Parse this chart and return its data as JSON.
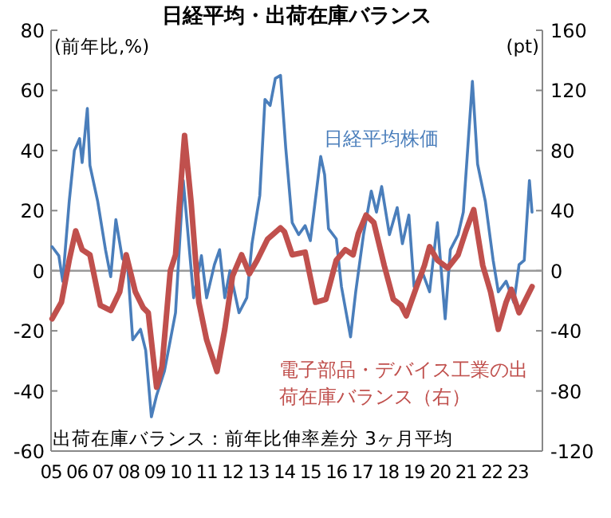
{
  "chart_data": {
    "type": "line",
    "title": "日経平均・出荷在庫バランス",
    "ylabel": "(前年比,%)",
    "y2label": "(pt)",
    "annotations": [
      "出荷在庫バランス：前年比伸率差分 3ヶ月平均"
    ],
    "xlim": [
      2005,
      2023.95
    ],
    "xticks": [
      {
        "value": 2005,
        "label": "05"
      },
      {
        "value": 2006,
        "label": "06"
      },
      {
        "value": 2007,
        "label": "07"
      },
      {
        "value": 2008,
        "label": "08"
      },
      {
        "value": 2009,
        "label": "09"
      },
      {
        "value": 2010,
        "label": "10"
      },
      {
        "value": 2011,
        "label": "11"
      },
      {
        "value": 2012,
        "label": "12"
      },
      {
        "value": 2013,
        "label": "13"
      },
      {
        "value": 2014,
        "label": "14"
      },
      {
        "value": 2015,
        "label": "15"
      },
      {
        "value": 2016,
        "label": "16"
      },
      {
        "value": 2017,
        "label": "17"
      },
      {
        "value": 2018,
        "label": "18"
      },
      {
        "value": 2019,
        "label": "19"
      },
      {
        "value": 2020,
        "label": "20"
      },
      {
        "value": 2021,
        "label": "21"
      },
      {
        "value": 2022,
        "label": "22"
      },
      {
        "value": 2023,
        "label": "23"
      }
    ],
    "ylim": [
      -60,
      80
    ],
    "yticks": [
      -60,
      -40,
      -20,
      0,
      20,
      40,
      60,
      80
    ],
    "y2lim": [
      -120,
      160
    ],
    "y2ticks": [
      -120,
      -80,
      -40,
      0,
      40,
      80,
      120,
      160
    ],
    "ref_lines": [
      {
        "axis": "y",
        "value": 0,
        "color": "#999999"
      }
    ],
    "grid": false,
    "series": [
      {
        "name": "日経平均株価",
        "color": "#4a7ebb",
        "x": [
          2005.04,
          2005.3,
          2005.45,
          2005.7,
          2005.9,
          2006.1,
          2006.2,
          2006.4,
          2006.5,
          2006.8,
          2007.1,
          2007.3,
          2007.5,
          2007.75,
          2007.95,
          2008.15,
          2008.45,
          2008.65,
          2008.87,
          2009.07,
          2009.37,
          2009.8,
          2010.1,
          2010.5,
          2010.8,
          2011.0,
          2011.3,
          2011.5,
          2011.7,
          2011.9,
          2012.25,
          2012.55,
          2012.75,
          2013.05,
          2013.25,
          2013.45,
          2013.65,
          2013.85,
          2014.05,
          2014.3,
          2014.55,
          2014.8,
          2015.0,
          2015.4,
          2015.55,
          2015.7,
          2016.0,
          2016.2,
          2016.55,
          2016.75,
          2017.05,
          2017.35,
          2017.55,
          2017.75,
          2018.05,
          2018.35,
          2018.55,
          2018.8,
          2019.0,
          2019.3,
          2019.6,
          2019.9,
          2020.2,
          2020.4,
          2020.7,
          2020.9,
          2021.25,
          2021.45,
          2021.75,
          2022.05,
          2022.25,
          2022.55,
          2022.85,
          2023.05,
          2023.25,
          2023.45,
          2023.55
        ],
        "values": [
          8,
          5,
          -3.5,
          23,
          40,
          44,
          36,
          54,
          35,
          23,
          7,
          -2,
          17,
          4,
          2,
          -23,
          -19.5,
          -26.5,
          -48.6,
          -41.5,
          -33.5,
          -14,
          30,
          -9,
          5,
          -9,
          2,
          7,
          -9,
          0,
          -14,
          -9,
          9,
          25,
          57,
          55,
          64,
          65,
          41,
          16,
          12,
          15,
          10,
          38,
          32,
          14,
          10.6,
          -5.3,
          -22,
          -7,
          12,
          26.5,
          19.5,
          28,
          12,
          21,
          9,
          18.5,
          -5.3,
          0,
          -7,
          16,
          -16,
          7,
          12,
          19.5,
          63,
          35.5,
          23,
          3.5,
          -7,
          -3.5,
          -10.6,
          2,
          3.5,
          30,
          19.5
        ]
      },
      {
        "name": "電子部品・デバイス工業の出荷在庫バランス（右）",
        "color": "#c0504d",
        "axis": "y2",
        "x": [
          2005.04,
          2005.4,
          2005.7,
          2005.95,
          2006.2,
          2006.5,
          2006.9,
          2007.3,
          2007.65,
          2007.9,
          2008.25,
          2008.55,
          2008.75,
          2009.07,
          2009.28,
          2009.6,
          2009.8,
          2010.15,
          2010.4,
          2010.7,
          2011.0,
          2011.4,
          2011.7,
          2012.0,
          2012.35,
          2012.65,
          2012.95,
          2013.35,
          2013.85,
          2014.0,
          2014.3,
          2014.8,
          2015.2,
          2015.6,
          2016.0,
          2016.35,
          2016.65,
          2016.85,
          2017.15,
          2017.45,
          2017.85,
          2018.2,
          2018.5,
          2018.7,
          2019.1,
          2019.4,
          2019.6,
          2019.9,
          2020.3,
          2020.7,
          2021.0,
          2021.3,
          2021.65,
          2021.95,
          2022.25,
          2022.55,
          2022.75,
          2023.05,
          2023.25,
          2023.55
        ],
        "values": [
          -32,
          -21,
          7,
          26.5,
          14,
          10.6,
          -23,
          -26.5,
          -14,
          10.6,
          -14,
          -24.5,
          -28,
          -77.5,
          -63.7,
          0,
          10.6,
          90,
          46,
          -21,
          -46,
          -67,
          -39,
          -3.5,
          10.6,
          -2,
          7,
          21,
          28.5,
          26,
          10.6,
          12.4,
          -21,
          -19,
          7,
          14,
          10.6,
          24.7,
          37,
          32,
          3.5,
          -19,
          -23,
          -30,
          -10.6,
          3.5,
          16,
          7,
          1.8,
          10.6,
          26.5,
          40.6,
          3.5,
          -14,
          -39,
          -21,
          -12.4,
          -28,
          -21,
          -10.6
        ]
      }
    ]
  }
}
